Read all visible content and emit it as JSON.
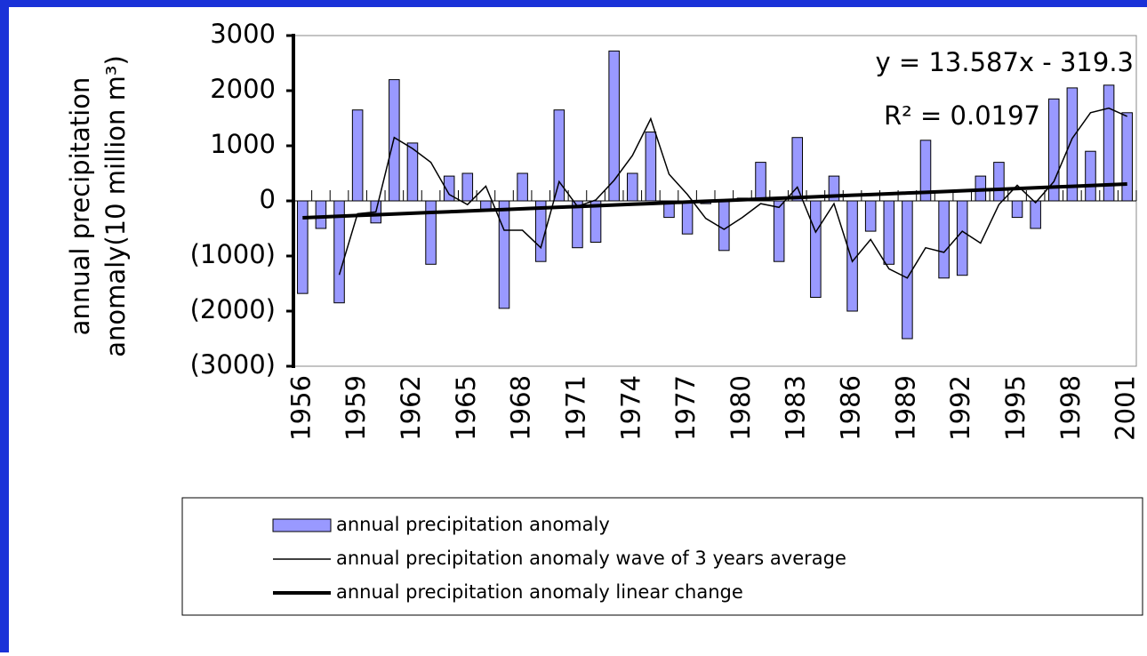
{
  "chart_data": {
    "type": "bar",
    "ylabel": [
      "annual precipitation",
      "anomaly(10 million m³)"
    ],
    "annotations": [
      "y = 13.587x - 319.3",
      "R² = 0.0197"
    ],
    "categories": [
      "1956",
      null,
      null,
      "1959",
      null,
      null,
      "1962",
      null,
      null,
      "1965",
      null,
      null,
      "1968",
      null,
      null,
      "1971",
      null,
      null,
      "1974",
      null,
      null,
      "1977",
      null,
      null,
      "1980",
      null,
      null,
      "1983",
      null,
      null,
      "1986",
      null,
      null,
      "1989",
      null,
      null,
      "1992",
      null,
      null,
      "1995",
      null,
      null,
      "1998",
      null,
      null,
      "2001"
    ],
    "series": [
      {
        "name": "annual precipitation anomaly",
        "type": "bar",
        "color": "#9999ff",
        "values": [
          -1680,
          -500,
          -1850,
          1650,
          -400,
          2200,
          1050,
          -1150,
          450,
          500,
          -150,
          -1950,
          500,
          -1100,
          1650,
          -850,
          -750,
          2720,
          500,
          1250,
          -300,
          -600,
          -50,
          -900,
          50,
          700,
          -1100,
          1150,
          -1750,
          450,
          -2000,
          -550,
          -1150,
          -2500,
          1100,
          -1400,
          -1350,
          450,
          700,
          -300,
          -500,
          1850,
          2050,
          900,
          2100,
          1600
        ]
      },
      {
        "name": "annual precipitation anomaly wave of 3 years average",
        "type": "line",
        "color": "#000000",
        "values": [
          null,
          null,
          -1343,
          -233,
          -200,
          1150,
          950,
          700,
          117,
          -67,
          267,
          -533,
          -533,
          -850,
          350,
          -100,
          17,
          373,
          823,
          1490,
          483,
          117,
          -317,
          -517,
          -300,
          -50,
          -117,
          250,
          -567,
          -50,
          -1100,
          -700,
          -1233,
          -1400,
          -850,
          -933,
          -550,
          -767,
          -67,
          283,
          -33,
          350,
          1133,
          1600,
          1683,
          1533
        ]
      },
      {
        "name": "annual precipitation anomaly linear change",
        "type": "trend",
        "color": "#000000",
        "values": [
          -305.7,
          -292.1,
          -278.5,
          -264.9,
          -251.4,
          -237.8,
          -224.2,
          -210.6,
          -197.0,
          -183.4,
          -169.8,
          -156.3,
          -142.7,
          -129.1,
          -115.5,
          -101.9,
          -88.3,
          -74.7,
          -61.1,
          -47.6,
          -34.0,
          -20.4,
          -6.8,
          6.8,
          20.4,
          33.9,
          47.5,
          61.1,
          74.7,
          88.3,
          101.9,
          115.5,
          129.0,
          142.7,
          156.2,
          169.8,
          183.4,
          197.0,
          210.6,
          224.2,
          237.8,
          251.4,
          264.9,
          278.5,
          292.1,
          305.7
        ]
      }
    ],
    "ylim": [
      -3000,
      3000
    ],
    "yticks": [
      {
        "value": -3000,
        "label": "(3000)"
      },
      {
        "value": -2000,
        "label": "(2000)"
      },
      {
        "value": -1000,
        "label": "(1000)"
      },
      0,
      1000,
      2000,
      3000
    ],
    "negative_tick_color": "#ff0000",
    "grid": false
  }
}
